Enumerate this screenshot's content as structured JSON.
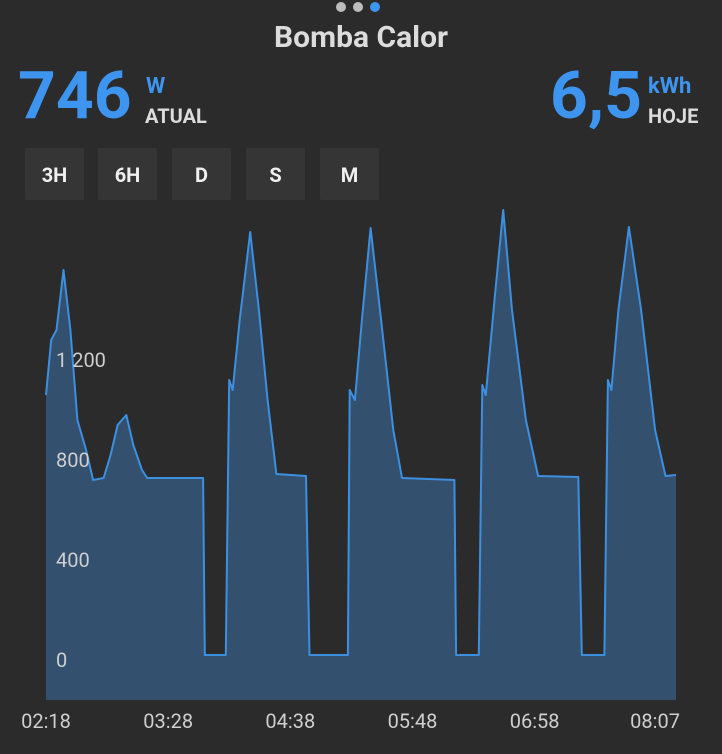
{
  "header": {
    "title": "Bomba Calor"
  },
  "current": {
    "value": "746",
    "unit": "W",
    "label": "ATUAL"
  },
  "today": {
    "value": "6,5",
    "unit": "kWh",
    "label": "HOJE"
  },
  "ranges": [
    "3H",
    "6H",
    "D",
    "S",
    "M"
  ],
  "chart_data": {
    "type": "area",
    "color": "#3d8fe0",
    "fill": "#33506f",
    "x": [
      "02:18",
      "02:21",
      "02:24",
      "02:28",
      "02:32",
      "02:36",
      "02:41",
      "02:45",
      "02:51",
      "02:55",
      "02:59",
      "03:04",
      "03:08",
      "03:13",
      "03:16",
      "03:48",
      "03:49",
      "04:01",
      "04:03",
      "04:05",
      "04:09",
      "04:15",
      "04:20",
      "04:25",
      "04:30",
      "04:47",
      "04:49",
      "05:11",
      "05:12",
      "05:15",
      "05:19",
      "05:24",
      "05:30",
      "05:37",
      "05:42",
      "06:12",
      "06:13",
      "06:26",
      "06:28",
      "06:30",
      "06:35",
      "06:40",
      "06:45",
      "06:53",
      "07:00",
      "07:23",
      "07:25",
      "07:38",
      "07:40",
      "07:42",
      "07:46",
      "07:52",
      "07:59",
      "08:07",
      "08:13",
      "08:19"
    ],
    "values": [
      1060,
      1280,
      1320,
      1560,
      1320,
      960,
      840,
      720,
      728,
      820,
      940,
      980,
      860,
      760,
      728,
      728,
      20,
      20,
      1120,
      1080,
      1360,
      1712,
      1400,
      1040,
      744,
      736,
      20,
      20,
      1080,
      1040,
      1360,
      1728,
      1360,
      920,
      728,
      720,
      20,
      20,
      1100,
      1060,
      1440,
      1800,
      1400,
      960,
      736,
      732,
      20,
      20,
      1120,
      1080,
      1400,
      1732,
      1400,
      920,
      736,
      740
    ],
    "xlim": [
      "02:18",
      "08:19"
    ],
    "xticks": [
      "02:18",
      "03:28",
      "04:38",
      "05:48",
      "06:58",
      "08:07"
    ],
    "ylim": [
      -160,
      1840
    ],
    "yticks": [
      0,
      400,
      800,
      {
        "value": 1200,
        "label": "1 200"
      }
    ],
    "grid": false
  }
}
